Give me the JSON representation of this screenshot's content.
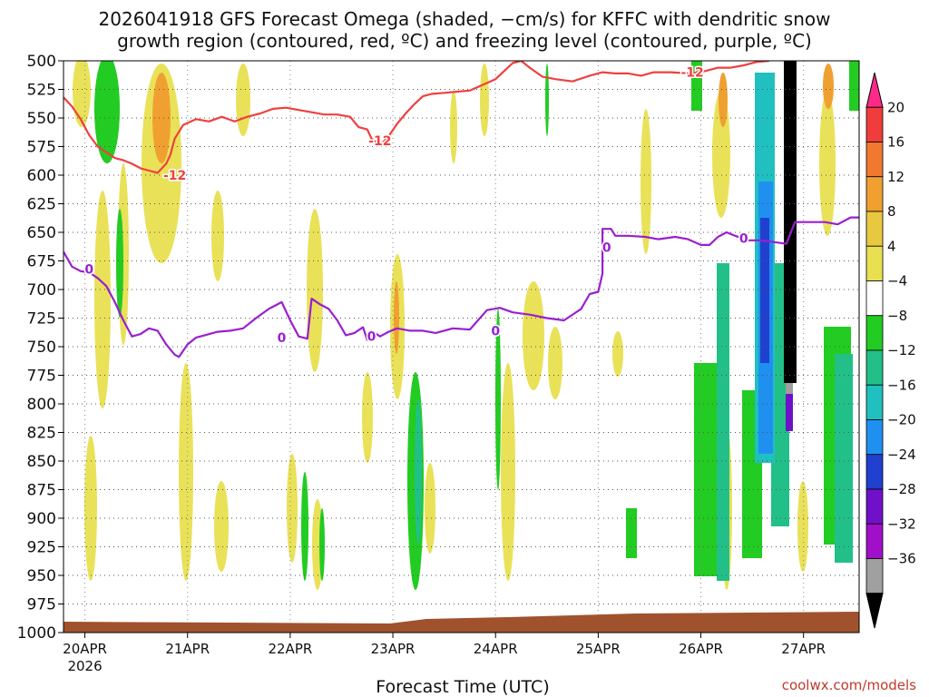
{
  "chart_data": {
    "type": "heatmap",
    "title_line1": "2026041918 GFS Forecast Omega (shaded, −cm/s) for KFFC with dendritic snow",
    "title_line2": "growth region (contoured, red, ºC) and freezing level (contoured, purple, ºC)",
    "xlabel": "Forecast Time (UTC)",
    "credit": "coolwx.com/models",
    "x_ticks": [
      {
        "label": "20APR",
        "sublabel": "2026",
        "hour": 0
      },
      {
        "label": "21APR",
        "hour": 24
      },
      {
        "label": "22APR",
        "hour": 48
      },
      {
        "label": "23APR",
        "hour": 72
      },
      {
        "label": "24APR",
        "hour": 96
      },
      {
        "label": "25APR",
        "hour": 120
      },
      {
        "label": "26APR",
        "hour": 144
      },
      {
        "label": "27APR",
        "hour": 168
      }
    ],
    "xlim_hours": [
      -5,
      181
    ],
    "y_ticks": [
      "500",
      "525",
      "550",
      "575",
      "600",
      "625",
      "650",
      "675",
      "700",
      "725",
      "750",
      "775",
      "800",
      "825",
      "850",
      "875",
      "900",
      "925",
      "950",
      "975",
      "1000"
    ],
    "ylim_hpa": [
      1000,
      500
    ],
    "colorbar": {
      "labels": [
        "20",
        "16",
        "12",
        "8",
        "4",
        "−4",
        "−8",
        "−12",
        "−16",
        "−20",
        "−24",
        "−28",
        "−32",
        "−36"
      ],
      "colors": [
        "#ff2a88",
        "#f03c3c",
        "#f07830",
        "#f0a030",
        "#e8c840",
        "#e8e050",
        "#ffffff",
        "#22cc22",
        "#22c088",
        "#20c0c0",
        "#2090f0",
        "#2040d0",
        "#7010c8",
        "#a010c8",
        "#a0a0a0",
        "#000000"
      ]
    },
    "series": [
      {
        "name": "-12 C isotherm (dendritic growth region)",
        "color": "#ef4040",
        "label": "-12",
        "label_points": [
          [
            21,
            600
          ],
          [
            69,
            570
          ],
          [
            142,
            510
          ]
        ],
        "points": [
          [
            -5,
            532
          ],
          [
            -3,
            540
          ],
          [
            -1,
            551
          ],
          [
            1,
            565
          ],
          [
            3,
            575
          ],
          [
            5,
            580
          ],
          [
            7,
            585
          ],
          [
            9,
            587
          ],
          [
            11,
            590
          ],
          [
            13,
            594
          ],
          [
            15,
            596
          ],
          [
            17,
            598
          ],
          [
            19,
            590
          ],
          [
            20,
            582
          ],
          [
            21,
            568
          ],
          [
            23,
            556
          ],
          [
            26,
            551
          ],
          [
            29,
            553
          ],
          [
            32,
            549
          ],
          [
            35,
            553
          ],
          [
            38,
            549
          ],
          [
            41,
            546
          ],
          [
            44,
            542
          ],
          [
            47,
            541
          ],
          [
            50,
            543
          ],
          [
            53,
            545
          ],
          [
            56,
            547
          ],
          [
            59,
            547
          ],
          [
            62,
            549
          ],
          [
            64,
            558
          ],
          [
            66,
            560
          ],
          [
            67,
            568
          ],
          [
            69,
            574
          ],
          [
            71,
            566
          ],
          [
            73,
            555
          ],
          [
            75,
            546
          ],
          [
            77,
            538
          ],
          [
            79,
            531
          ],
          [
            81,
            529
          ],
          [
            84,
            528
          ],
          [
            87,
            527
          ],
          [
            90,
            526
          ],
          [
            93,
            521
          ],
          [
            96,
            516
          ],
          [
            98,
            509
          ],
          [
            100,
            502
          ],
          [
            102,
            500
          ],
          [
            104,
            506
          ],
          [
            107,
            514
          ],
          [
            110,
            516
          ],
          [
            114,
            518
          ],
          [
            118,
            513
          ],
          [
            121,
            510
          ],
          [
            124,
            511
          ],
          [
            127,
            511
          ],
          [
            130,
            513
          ],
          [
            133,
            510
          ],
          [
            137,
            510
          ],
          [
            141,
            511
          ],
          [
            145,
            509
          ],
          [
            148,
            506
          ],
          [
            151,
            506
          ],
          [
            154,
            504
          ],
          [
            157,
            501
          ],
          [
            160,
            500
          ]
        ]
      },
      {
        "name": "0 C isotherm (freezing level)",
        "color": "#9a1fd0",
        "label": "0",
        "label_points": [
          [
            1,
            682
          ],
          [
            46,
            742
          ],
          [
            67,
            741
          ],
          [
            96,
            736
          ],
          [
            122,
            663
          ],
          [
            154,
            655
          ]
        ],
        "points": [
          [
            -5,
            667
          ],
          [
            -3,
            680
          ],
          [
            -1,
            684
          ],
          [
            1,
            685
          ],
          [
            3,
            690
          ],
          [
            5,
            697
          ],
          [
            7,
            711
          ],
          [
            9,
            727
          ],
          [
            11,
            741
          ],
          [
            13,
            739
          ],
          [
            15,
            734
          ],
          [
            17,
            736
          ],
          [
            19,
            748
          ],
          [
            21,
            757
          ],
          [
            22,
            759
          ],
          [
            24,
            748
          ],
          [
            26,
            742
          ],
          [
            28,
            740
          ],
          [
            31,
            737
          ],
          [
            34,
            736
          ],
          [
            37,
            734
          ],
          [
            40,
            725
          ],
          [
            43,
            717
          ],
          [
            46,
            711
          ],
          [
            48,
            727
          ],
          [
            50,
            741
          ],
          [
            52,
            743
          ],
          [
            53,
            708
          ],
          [
            55,
            713
          ],
          [
            57,
            717
          ],
          [
            59,
            727
          ],
          [
            61,
            740
          ],
          [
            63,
            738
          ],
          [
            65,
            733
          ],
          [
            66,
            744
          ],
          [
            67,
            736
          ],
          [
            69,
            741
          ],
          [
            71,
            737
          ],
          [
            73,
            734
          ],
          [
            76,
            736
          ],
          [
            79,
            736
          ],
          [
            82,
            738
          ],
          [
            86,
            734
          ],
          [
            90,
            735
          ],
          [
            94,
            718
          ],
          [
            97,
            716
          ],
          [
            100,
            720
          ],
          [
            104,
            722
          ],
          [
            108,
            725
          ],
          [
            112,
            727
          ],
          [
            116,
            717
          ],
          [
            118,
            704
          ],
          [
            120,
            702
          ],
          [
            121,
            686
          ],
          [
            121,
            647
          ],
          [
            123,
            647
          ],
          [
            124,
            653
          ],
          [
            127,
            653
          ],
          [
            131,
            654
          ],
          [
            134,
            656
          ],
          [
            138,
            654
          ],
          [
            141,
            656
          ],
          [
            144,
            661
          ],
          [
            146,
            661
          ],
          [
            148,
            654
          ],
          [
            150,
            650
          ],
          [
            152,
            653
          ],
          [
            155,
            657
          ],
          [
            158,
            657
          ],
          [
            162,
            659
          ],
          [
            164,
            660
          ],
          [
            166,
            641
          ],
          [
            169,
            641
          ],
          [
            173,
            641
          ],
          [
            176,
            643
          ],
          [
            179,
            637
          ],
          [
            181,
            637
          ]
        ]
      }
    ]
  }
}
